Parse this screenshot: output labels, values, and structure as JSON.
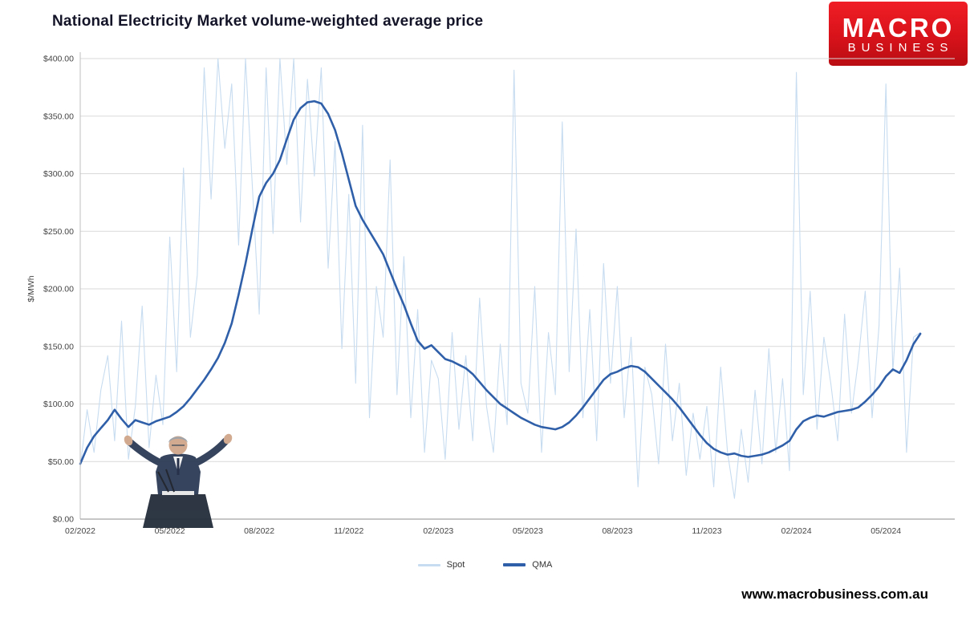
{
  "title": "National Electricity Market volume-weighted average price",
  "logo": {
    "line1": "MACRO",
    "line2": "BUSINESS",
    "bg_color": "#d8121a",
    "text_color": "#ffffff"
  },
  "footer_url": "www.macrobusiness.com.au",
  "watermark_icon": "politician-at-podium-photo",
  "legend": [
    {
      "label": "Spot",
      "color": "#c7dcf0",
      "thickness": 3
    },
    {
      "label": "QMA",
      "color": "#2f5fa8",
      "thickness": 4
    }
  ],
  "chart_data": {
    "type": "line",
    "title": "National Electricity Market volume-weighted average price",
    "xlabel": "",
    "ylabel": "$/MWh",
    "ylim": [
      0,
      400
    ],
    "x_domain": [
      0,
      127
    ],
    "x_unit": "weeks since 02/2022",
    "grid": true,
    "legend_position": "bottom",
    "y_ticks": [
      {
        "value": 0,
        "label": "$0.00"
      },
      {
        "value": 50,
        "label": "$50.00"
      },
      {
        "value": 100,
        "label": "$100.00"
      },
      {
        "value": 150,
        "label": "$150.00"
      },
      {
        "value": 200,
        "label": "$200.00"
      },
      {
        "value": 250,
        "label": "$250.00"
      },
      {
        "value": 300,
        "label": "$300.00"
      },
      {
        "value": 350,
        "label": "$350.00"
      },
      {
        "value": 400,
        "label": "$400.00"
      }
    ],
    "x_ticks": [
      {
        "pos": 0,
        "label": "02/2022"
      },
      {
        "pos": 13,
        "label": "05/2022"
      },
      {
        "pos": 26,
        "label": "08/2022"
      },
      {
        "pos": 39,
        "label": "11/2022"
      },
      {
        "pos": 52,
        "label": "02/2023"
      },
      {
        "pos": 65,
        "label": "05/2023"
      },
      {
        "pos": 78,
        "label": "08/2023"
      },
      {
        "pos": 91,
        "label": "11/2023"
      },
      {
        "pos": 104,
        "label": "02/2024"
      },
      {
        "pos": 117,
        "label": "05/2024"
      }
    ],
    "series": [
      {
        "name": "Spot",
        "color": "#c7dcf0",
        "width": 1.1,
        "values": [
          45,
          95,
          58,
          112,
          142,
          68,
          172,
          52,
          98,
          185,
          62,
          125,
          82,
          245,
          128,
          305,
          158,
          212,
          392,
          278,
          400,
          322,
          378,
          238,
          400,
          288,
          178,
          392,
          248,
          400,
          308,
          400,
          258,
          382,
          298,
          392,
          218,
          328,
          148,
          282,
          118,
          342,
          88,
          202,
          158,
          312,
          108,
          228,
          88,
          182,
          58,
          138,
          122,
          52,
          162,
          78,
          142,
          68,
          192,
          98,
          58,
          152,
          82,
          390,
          118,
          92,
          202,
          58,
          162,
          108,
          345,
          128,
          252,
          88,
          182,
          68,
          222,
          118,
          202,
          88,
          158,
          28,
          132,
          108,
          48,
          152,
          68,
          118,
          38,
          92,
          52,
          98,
          28,
          132,
          58,
          18,
          78,
          32,
          112,
          48,
          148,
          58,
          122,
          42,
          388,
          108,
          198,
          78,
          158,
          118,
          68,
          178,
          92,
          138,
          198,
          88,
          168,
          378,
          128,
          218,
          58,
          158,
          162
        ]
      },
      {
        "name": "QMA",
        "color": "#2f5fa8",
        "width": 2.6,
        "values": [
          48,
          62,
          72,
          79,
          86,
          95,
          87,
          80,
          86,
          84,
          82,
          85,
          87,
          89,
          93,
          98,
          105,
          113,
          121,
          130,
          140,
          153,
          170,
          195,
          222,
          252,
          280,
          292,
          300,
          312,
          330,
          347,
          357,
          362,
          363,
          361,
          352,
          338,
          318,
          295,
          272,
          260,
          250,
          240,
          230,
          215,
          200,
          186,
          170,
          155,
          148,
          151,
          145,
          139,
          137,
          134,
          131,
          126,
          119,
          112,
          106,
          100,
          96,
          92,
          88,
          85,
          82,
          80,
          79,
          78,
          80,
          84,
          90,
          97,
          105,
          113,
          121,
          126,
          128,
          131,
          133,
          132,
          128,
          122,
          116,
          110,
          104,
          97,
          89,
          81,
          73,
          66,
          61,
          58,
          56,
          57,
          55,
          54,
          55,
          56,
          58,
          61,
          64,
          68,
          78,
          85,
          88,
          90,
          89,
          91,
          93,
          94,
          95,
          97,
          102,
          108,
          115,
          124,
          130,
          127,
          138,
          152,
          161
        ]
      }
    ]
  }
}
